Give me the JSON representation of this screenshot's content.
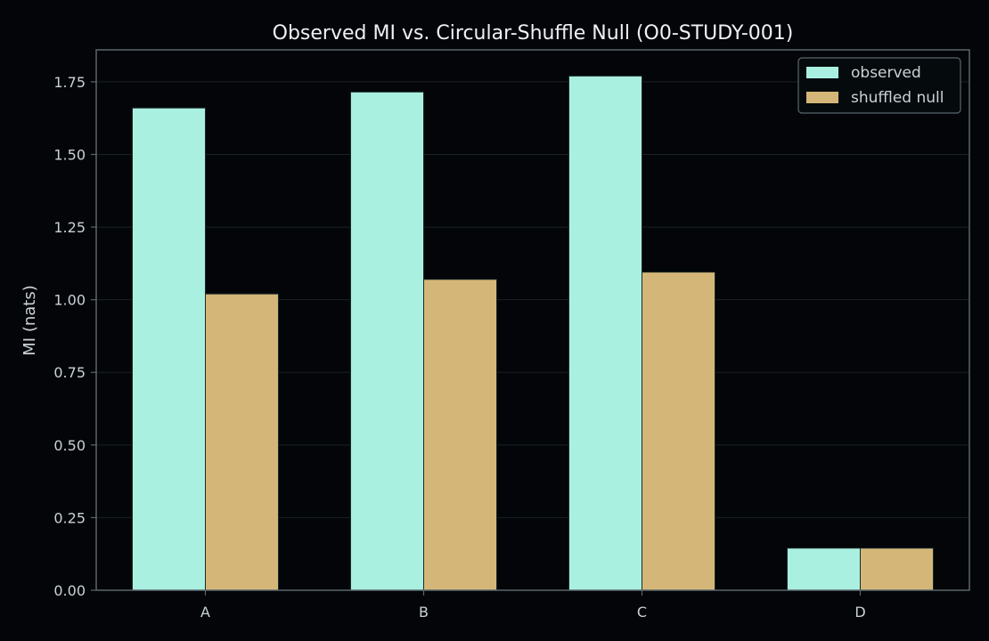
{
  "chart_data": {
    "type": "bar",
    "title": "Observed MI vs. Circular-Shuffle Null (O0-STUDY-001)",
    "xlabel": "",
    "ylabel": "MI (nats)",
    "categories": [
      "A",
      "B",
      "C",
      "D"
    ],
    "series": [
      {
        "name": "observed",
        "values": [
          1.66,
          1.715,
          1.77,
          0.145
        ],
        "color": "#aaf0e1"
      },
      {
        "name": "shuffled null",
        "values": [
          1.02,
          1.07,
          1.095,
          0.145
        ],
        "color": "#d4b778"
      }
    ],
    "ylim": [
      0,
      1.86
    ],
    "yticks": [
      "0.00",
      "0.25",
      "0.50",
      "0.75",
      "1.00",
      "1.25",
      "1.50",
      "1.75"
    ],
    "grid": true,
    "legend": "top-right",
    "colors": {
      "background": "#030508",
      "frame": "#59666c",
      "grid": "#1a2226"
    }
  }
}
